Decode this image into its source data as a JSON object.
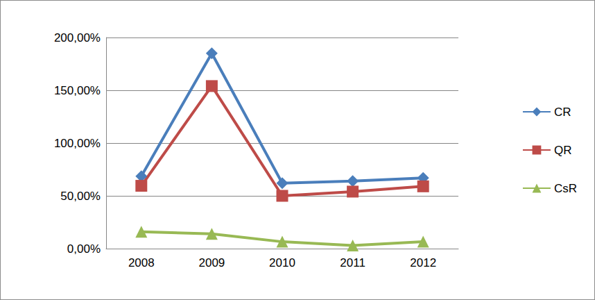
{
  "chart_data": {
    "type": "line",
    "categories": [
      "2008",
      "2009",
      "2010",
      "2011",
      "2012"
    ],
    "series": [
      {
        "name": "CR",
        "color": "#4a7ebb",
        "marker": "diamond",
        "values": [
          68.6,
          185,
          62,
          64,
          67
        ]
      },
      {
        "name": "QR",
        "color": "#be4b48",
        "marker": "square",
        "values": [
          59.5,
          154,
          50,
          54,
          59
        ]
      },
      {
        "name": "CsR",
        "color": "#98b954",
        "marker": "triangle",
        "values": [
          16,
          14,
          6.5,
          3,
          6.5
        ]
      }
    ],
    "ylim": [
      0,
      200
    ],
    "yticks": [
      {
        "value": 0,
        "label": "0,00%"
      },
      {
        "value": 50,
        "label": "50,00%"
      },
      {
        "value": 100,
        "label": "100,00%"
      },
      {
        "value": 150,
        "label": "150,00%"
      },
      {
        "value": 200,
        "label": "200,00%"
      }
    ],
    "grid": true,
    "legend": "right"
  }
}
